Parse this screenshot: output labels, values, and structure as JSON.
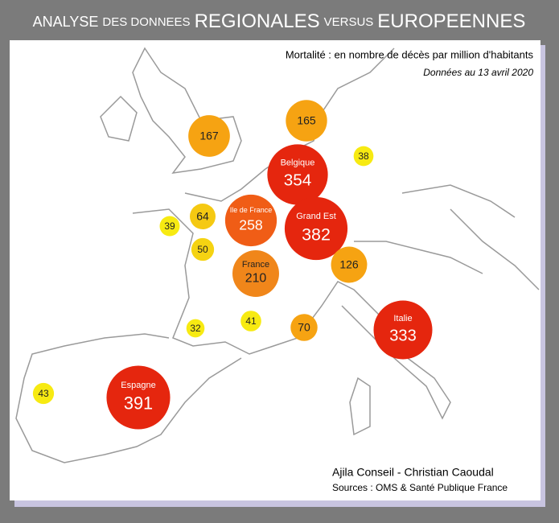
{
  "header": {
    "title_parts": [
      "ANALYSE",
      "DES DONNEES",
      "REGIONALES",
      "VERSUS",
      "EUROPEENNES"
    ],
    "subtitle": "Mortalité : en nombre de décès par million d'habitants",
    "date_note": "Données au 13 avril 2020"
  },
  "bubbles": [
    {
      "value": 167,
      "color": "#f6a312",
      "text_color": "#222222"
    },
    {
      "value": 165,
      "color": "#f6a312",
      "text_color": "#222222"
    },
    {
      "value": 38,
      "color": "#f7ea12",
      "text_color": "#222222"
    },
    {
      "label": "Belgique",
      "value": 354,
      "color": "#e5260e",
      "text_color": "#ffffff"
    },
    {
      "value": 64,
      "color": "#f5c912",
      "text_color": "#222222"
    },
    {
      "value": 39,
      "color": "#f7ea12",
      "text_color": "#222222"
    },
    {
      "label": "Ile de France",
      "value": 258,
      "color": "#f05d16",
      "text_color": "#ffffff"
    },
    {
      "label": "Grand Est",
      "value": 382,
      "color": "#e5260e",
      "text_color": "#ffffff"
    },
    {
      "value": 50,
      "color": "#f5d312",
      "text_color": "#222222"
    },
    {
      "label": "France",
      "value": 210,
      "color": "#f0861a",
      "text_color": "#222222"
    },
    {
      "value": 126,
      "color": "#f6a312",
      "text_color": "#222222"
    },
    {
      "label": "Italie",
      "value": 333,
      "color": "#e5260e",
      "text_color": "#ffffff"
    },
    {
      "value": 32,
      "color": "#f7ea12",
      "text_color": "#222222"
    },
    {
      "value": 41,
      "color": "#f7ea12",
      "text_color": "#222222"
    },
    {
      "value": 70,
      "color": "#f6a312",
      "text_color": "#222222"
    },
    {
      "label": "Espagne",
      "value": 391,
      "color": "#e5260e",
      "text_color": "#ffffff"
    },
    {
      "value": 43,
      "color": "#f7ea12",
      "text_color": "#222222"
    }
  ],
  "footer": {
    "author": "Ajila Conseil - Christian Caoudal",
    "sources": "Sources : OMS & Santé Publique France"
  }
}
